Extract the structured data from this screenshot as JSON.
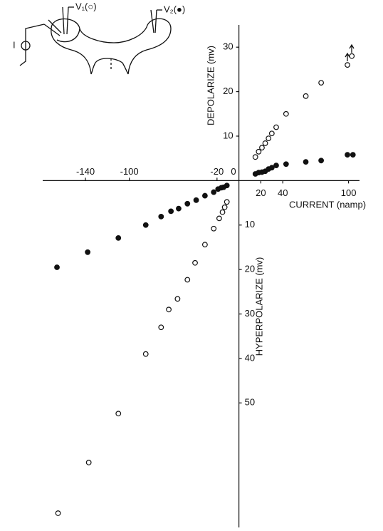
{
  "chart_data": {
    "type": "scatter",
    "x_label": "CURRENT (namp)",
    "y_label": "DEPOLARIZE (mv)",
    "y_label_negative": "HYPERPOLARIZE (mv)",
    "source_label": "I",
    "xlim": [
      -179,
      110
    ],
    "ylim": [
      -78,
      35
    ],
    "xticks": [
      -140,
      -100,
      -20,
      0,
      20,
      40,
      100
    ],
    "yticks": [
      {
        "value": -50,
        "label": "50"
      },
      {
        "value": -40,
        "label": "40"
      },
      {
        "value": -30,
        "label": "30"
      },
      {
        "value": -20,
        "label": "20"
      },
      {
        "value": -10,
        "label": "10"
      },
      10,
      20,
      30
    ],
    "series": [
      {
        "name": "V₁(○)",
        "marker": "open",
        "color": "#111111",
        "x": [
          15,
          18,
          21,
          24,
          27,
          30,
          34,
          43,
          61,
          75,
          99,
          103,
          -11,
          -13,
          -15,
          -18,
          -23,
          -31,
          -40,
          -47,
          -56,
          -64,
          -71,
          -85,
          -110,
          -137,
          -165
        ],
        "values": [
          5.3,
          6.5,
          7.4,
          8.4,
          9.5,
          10.6,
          12,
          15,
          19,
          22,
          26,
          28,
          -4.8,
          -6,
          -7.1,
          -8.5,
          -10.8,
          -14.4,
          -18.5,
          -22.3,
          -26.6,
          -29,
          -33,
          -39,
          -52.4,
          -63.4,
          -74.8
        ]
      },
      {
        "name": "V₂(●)",
        "marker": "filled",
        "color": "#111111",
        "x": [
          15,
          18,
          21,
          24,
          27,
          30,
          34,
          43,
          61,
          75,
          99,
          104,
          -11,
          -14,
          -16,
          -19,
          -23,
          -31,
          -39,
          -47,
          -55,
          -62,
          -71,
          -85,
          -110,
          -138,
          -166
        ],
        "values": [
          1.5,
          1.8,
          1.9,
          2.1,
          2.6,
          2.9,
          3.4,
          3.7,
          4.2,
          4.5,
          5.8,
          5.8,
          -1.1,
          -1.5,
          -1.6,
          -1.9,
          -2.6,
          -3.4,
          -4.4,
          -5.2,
          -6.3,
          -6.9,
          -8.1,
          -10,
          -12.9,
          -16.1,
          -19.5
        ]
      }
    ]
  }
}
